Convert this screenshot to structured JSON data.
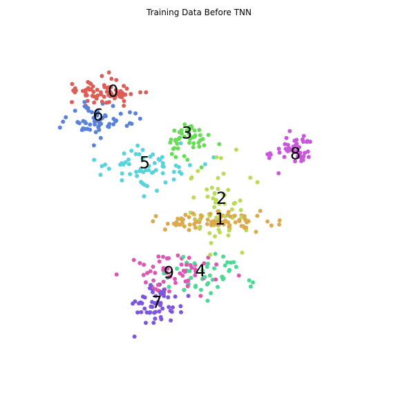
{
  "chart_data": {
    "type": "scatter",
    "title": "Training Data Before TNN",
    "xlabel": "",
    "ylabel": "",
    "axes_visible": false,
    "xlim": [
      0,
      100
    ],
    "ylim": [
      0,
      100
    ],
    "series": [
      {
        "name": "0",
        "color": "#db5f57",
        "label_at": [
          21.5,
          86.5
        ],
        "centroid": [
          18,
          86
        ],
        "spread": [
          13,
          5
        ],
        "count": 70
      },
      {
        "name": "1",
        "color": "#dbaa4c",
        "label_at": [
          57,
          43.5
        ],
        "centroid": [
          55,
          43
        ],
        "spread": [
          20,
          4
        ],
        "count": 90
      },
      {
        "name": "2",
        "color": "#b9db57",
        "label_at": [
          57.5,
          50.5
        ],
        "centroid": [
          56,
          48
        ],
        "spread": [
          12,
          18
        ],
        "count": 55
      },
      {
        "name": "3",
        "color": "#69db57",
        "label_at": [
          46,
          72.5
        ],
        "centroid": [
          46,
          71
        ],
        "spread": [
          8,
          6
        ],
        "count": 45
      },
      {
        "name": "4",
        "color": "#4cd994",
        "label_at": [
          50.5,
          26
        ],
        "centroid": [
          52,
          25
        ],
        "spread": [
          13,
          8
        ],
        "count": 45
      },
      {
        "name": "5",
        "color": "#57d3db",
        "label_at": [
          32,
          62.5
        ],
        "centroid": [
          30,
          61
        ],
        "spread": [
          19,
          8
        ],
        "count": 60
      },
      {
        "name": "6",
        "color": "#5b82db",
        "label_at": [
          16.5,
          78.5
        ],
        "centroid": [
          17,
          77
        ],
        "spread": [
          12,
          6
        ],
        "count": 60
      },
      {
        "name": "7",
        "color": "#7c57db",
        "label_at": [
          36,
          15.5
        ],
        "centroid": [
          36,
          15
        ],
        "spread": [
          14,
          8
        ],
        "count": 55
      },
      {
        "name": "8",
        "color": "#c957db",
        "label_at": [
          82,
          65.5
        ],
        "centroid": [
          80,
          66
        ],
        "spread": [
          8,
          6
        ],
        "count": 45
      },
      {
        "name": "9",
        "color": "#db57b2",
        "label_at": [
          40,
          25.5
        ],
        "centroid": [
          42,
          26
        ],
        "spread": [
          18,
          7
        ],
        "count": 60
      }
    ]
  }
}
